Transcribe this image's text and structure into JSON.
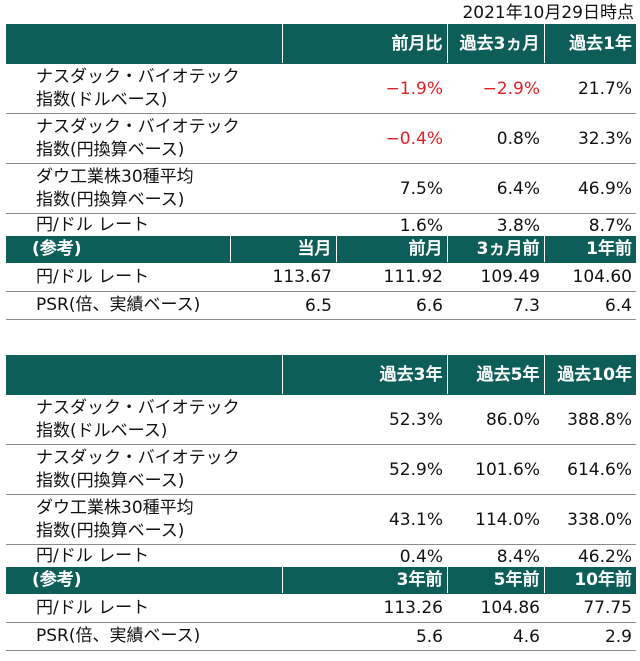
{
  "date_label": "2021年10月29日時点",
  "colors": {
    "header_bg": "#0d5e59",
    "header_text": "#ffffff",
    "negative": "#e01f26"
  },
  "table1": {
    "headers": [
      "",
      "前月比",
      "過去3ヵ月",
      "過去1年"
    ],
    "rows": [
      {
        "label": [
          "ナスダック・バイオテック",
          "指数(ドルベース)"
        ],
        "values": [
          "−1.9%",
          "−2.9%",
          "21.7%"
        ]
      },
      {
        "label": [
          "ナスダック・バイオテック",
          "指数(円換算ベース)"
        ],
        "values": [
          "−0.4%",
          "0.8%",
          "32.3%"
        ]
      },
      {
        "label": [
          "ダウ工業株30種平均",
          "指数(円換算ベース)"
        ],
        "values": [
          "7.5%",
          "6.4%",
          "46.9%"
        ]
      },
      {
        "label": [
          "円/ドル レート"
        ],
        "values": [
          "1.6%",
          "3.8%",
          "8.7%"
        ]
      }
    ],
    "ref_headers": [
      "(参考)",
      "当月",
      "前月",
      "3ヵ月前",
      "1年前"
    ],
    "ref_rows": [
      {
        "label": "円/ドル レート",
        "values": [
          "113.67",
          "111.92",
          "109.49",
          "104.60"
        ]
      },
      {
        "label": "PSR(倍、実績ベース)",
        "values": [
          "6.5",
          "6.6",
          "7.3",
          "6.4"
        ]
      }
    ]
  },
  "table2": {
    "headers": [
      "",
      "過去3年",
      "過去5年",
      "過去10年"
    ],
    "rows": [
      {
        "label": [
          "ナスダック・バイオテック",
          "指数(ドルベース)"
        ],
        "values": [
          "52.3%",
          "86.0%",
          "388.8%"
        ]
      },
      {
        "label": [
          "ナスダック・バイオテック",
          "指数(円換算ベース)"
        ],
        "values": [
          "52.9%",
          "101.6%",
          "614.6%"
        ]
      },
      {
        "label": [
          "ダウ工業株30種平均",
          "指数(円換算ベース)"
        ],
        "values": [
          "43.1%",
          "114.0%",
          "338.0%"
        ]
      },
      {
        "label": [
          "円/ドル レート"
        ],
        "values": [
          "0.4%",
          "8.4%",
          "46.2%"
        ]
      }
    ],
    "ref_headers": [
      "(参考)",
      "3年前",
      "5年前",
      "10年前"
    ],
    "ref_rows": [
      {
        "label": "円/ドル レート",
        "values": [
          "113.26",
          "104.86",
          "77.75"
        ]
      },
      {
        "label": "PSR(倍、実績ベース)",
        "values": [
          "5.6",
          "4.6",
          "2.9"
        ]
      }
    ]
  }
}
